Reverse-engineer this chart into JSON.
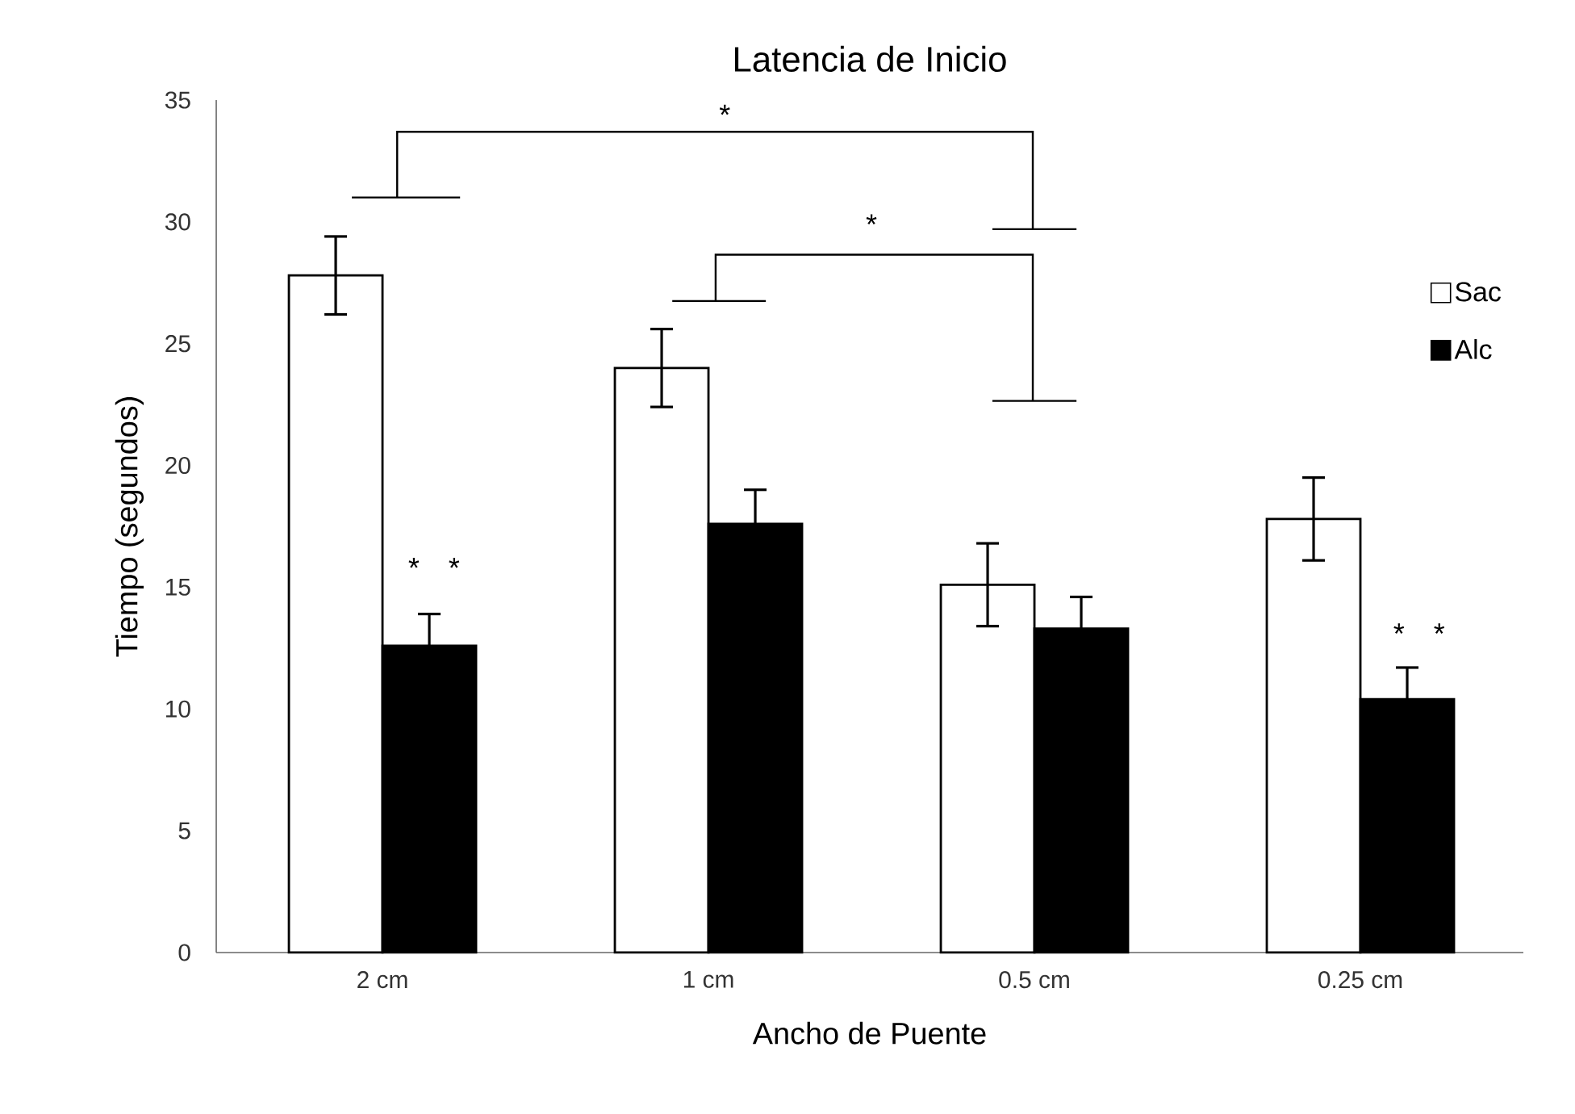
{
  "chart_data": {
    "type": "bar",
    "title": "Latencia de Inicio",
    "xlabel": "Ancho de Puente",
    "ylabel": "Tiempo (segundos)",
    "categories": [
      "2 cm",
      "1 cm",
      "0.5 cm",
      "0.25 cm"
    ],
    "series": [
      {
        "name": "Sac",
        "color": "#ffffff",
        "values": [
          27.8,
          24.0,
          15.1,
          17.8
        ],
        "errors": [
          1.6,
          1.6,
          1.7,
          1.7
        ]
      },
      {
        "name": "Alc",
        "color": "#000000",
        "values": [
          12.6,
          17.6,
          13.3,
          10.4
        ],
        "errors": [
          1.3,
          1.4,
          1.3,
          1.3
        ]
      }
    ],
    "ylim": [
      0,
      35
    ],
    "yticks": [
      0,
      5,
      10,
      15,
      20,
      25,
      30,
      35
    ],
    "grid": false,
    "legend": "right",
    "annotations": [
      "*",
      "*",
      "* *",
      "* *"
    ]
  }
}
